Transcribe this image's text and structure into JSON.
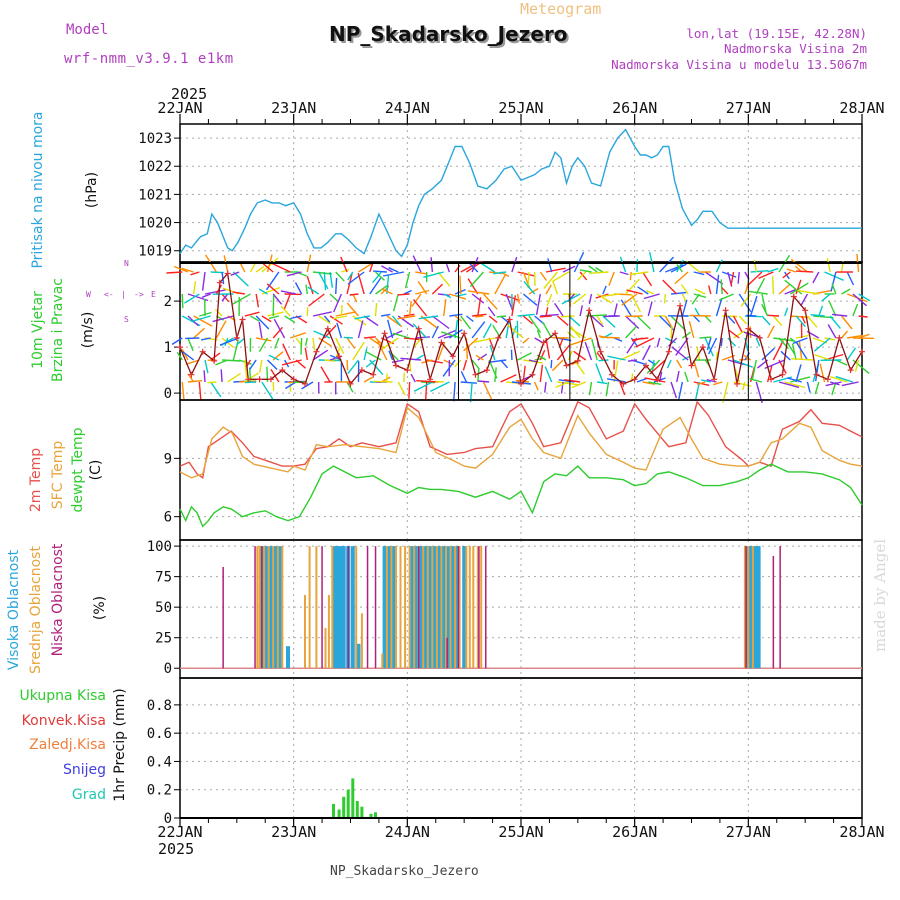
{
  "header": {
    "model_label": "Model",
    "model_name": "wrf-nmm_v3.9.1 e1km",
    "chart_kind": "Meteogram",
    "station": "NP_Skadarsko_Jezero",
    "lonlat": "lon,lat (19.15E, 42.28N)",
    "elevation": "Nadmorska Visina 2m",
    "model_elevation": "Nadmorska Visina u modelu 13.5067m"
  },
  "footer": {
    "station": "NP_Skadarsko_Jezero",
    "credit": "made by Angel"
  },
  "colors": {
    "pressure": "#2aa6dc",
    "temp2m": "#e8504a",
    "sfc_temp": "#e8a43c",
    "dewpt": "#2ecc2e",
    "wind_speed": "#8b1010",
    "wind_marker": "#e23030",
    "high_cloud": "#2aa6dc",
    "mid_cloud": "#e8a43c",
    "low_cloud": "#b0207a",
    "total_precip": "#2ecc2e",
    "conv_precip": "#e23a3a",
    "frozen_precip": "#f08040",
    "snow": "#4040e0",
    "hail": "#20c8b0",
    "legend_purple": "#b040c0",
    "grid": "#aaaaaa"
  },
  "chart_data": [
    {
      "type": "line",
      "panel": "pressure",
      "ylabel_lines": [
        "Pritisak na nivou mora",
        "(hPa)"
      ],
      "ylim": [
        1018.6,
        1023.5
      ],
      "yticks": [
        1019,
        1020,
        1021,
        1022,
        1023
      ],
      "x_days": [
        0,
        0.05,
        0.1,
        0.14,
        0.18,
        0.24,
        0.28,
        0.33,
        0.38,
        0.42,
        0.46,
        0.51,
        0.57,
        0.62,
        0.68,
        0.75,
        0.81,
        0.87,
        0.93,
        1.0,
        1.06,
        1.12,
        1.18,
        1.24,
        1.3,
        1.37,
        1.42,
        1.48,
        1.55,
        1.62,
        1.68,
        1.75,
        1.82,
        1.9,
        1.95,
        2.0,
        2.05,
        2.1,
        2.15,
        2.22,
        2.3,
        2.37,
        2.42,
        2.48,
        2.55,
        2.62,
        2.7,
        2.78,
        2.85,
        2.92,
        3.0,
        3.06,
        3.12,
        3.18,
        3.25,
        3.3,
        3.35,
        3.4,
        3.45,
        3.5,
        3.56,
        3.62,
        3.7,
        3.78,
        3.85,
        3.92,
        4.0,
        4.05,
        4.1,
        4.15,
        4.2,
        4.25,
        4.3,
        4.35,
        4.42,
        4.5,
        4.55,
        4.6,
        4.68,
        4.75,
        4.82,
        4.9,
        4.95,
        5.0,
        5.05,
        5.1,
        5.15,
        5.2,
        5.25,
        5.3,
        5.35,
        5.4,
        5.45,
        5.5,
        5.58,
        5.65,
        5.72,
        5.8,
        5.87,
        5.93,
        6.0
      ],
      "values": [
        1018.9,
        1019.2,
        1019.1,
        1019.3,
        1019.5,
        1019.6,
        1020.3,
        1020.0,
        1019.5,
        1019.1,
        1019.0,
        1019.3,
        1019.8,
        1020.3,
        1020.7,
        1020.8,
        1020.7,
        1020.7,
        1020.6,
        1020.7,
        1020.3,
        1019.6,
        1019.1,
        1019.1,
        1019.3,
        1019.6,
        1019.6,
        1019.4,
        1019.1,
        1018.9,
        1019.5,
        1020.3,
        1019.7,
        1019.0,
        1018.8,
        1019.2,
        1020.0,
        1020.6,
        1021.0,
        1021.2,
        1021.5,
        1022.2,
        1022.7,
        1022.7,
        1022.1,
        1021.3,
        1021.2,
        1021.5,
        1021.9,
        1022.0,
        1021.5,
        1021.6,
        1021.7,
        1021.9,
        1022.0,
        1022.5,
        1022.3,
        1021.4,
        1022.0,
        1022.3,
        1022.0,
        1021.4,
        1021.3,
        1022.5,
        1023.0,
        1023.3,
        1022.7,
        1022.4,
        1022.4,
        1022.3,
        1022.4,
        1022.7,
        1022.7,
        1021.5,
        1020.5,
        1019.9,
        1020.1,
        1020.4,
        1020.4,
        1020.0,
        1019.8,
        1019.8,
        1019.8,
        1019.8,
        1019.8,
        1019.8,
        1019.8,
        1019.8,
        1019.8,
        1019.8,
        1019.8,
        1019.8,
        1019.8,
        1019.8,
        1019.8,
        1019.8,
        1019.8,
        1019.8,
        1019.8,
        1019.8,
        1019.8
      ]
    },
    {
      "type": "line",
      "panel": "wind",
      "ylabel_lines": [
        "10m Vjetar",
        "Brzina i Pravac",
        "(m/s)"
      ],
      "compass_labels": [
        "N",
        "W",
        "<-",
        "|",
        "->",
        "E",
        "S"
      ],
      "ylim": [
        -0.15,
        2.85
      ],
      "yticks": [
        0,
        1,
        2
      ],
      "x_days": [
        0,
        0.1,
        0.2,
        0.3,
        0.35,
        0.42,
        0.5,
        0.55,
        0.6,
        0.7,
        0.8,
        0.9,
        1.0,
        1.1,
        1.2,
        1.3,
        1.4,
        1.5,
        1.6,
        1.7,
        1.8,
        1.9,
        2.0,
        2.1,
        2.2,
        2.3,
        2.4,
        2.5,
        2.6,
        2.7,
        2.8,
        2.9,
        3.0,
        3.1,
        3.2,
        3.3,
        3.4,
        3.5,
        3.6,
        3.7,
        3.8,
        3.9,
        4.0,
        4.1,
        4.2,
        4.3,
        4.4,
        4.5,
        4.6,
        4.7,
        4.8,
        4.9,
        5.0,
        5.1,
        5.2,
        5.3,
        5.4,
        5.5,
        5.6,
        5.7,
        5.8,
        5.9,
        6.0
      ],
      "values": [
        1.0,
        0.4,
        0.9,
        0.7,
        2.4,
        2.6,
        1.2,
        1.6,
        0.3,
        0.3,
        0.3,
        0.5,
        0.3,
        0.2,
        0.9,
        1.4,
        0.8,
        0.2,
        0.5,
        0.4,
        1.3,
        0.6,
        0.5,
        1.4,
        0.3,
        1.1,
        0.8,
        1.3,
        0.4,
        0.5,
        1.2,
        1.6,
        0.2,
        0.4,
        1.1,
        1.3,
        0.6,
        0.7,
        1.8,
        0.9,
        0.4,
        0.2,
        0.3,
        0.6,
        0.3,
        0.9,
        1.9,
        0.6,
        1.0,
        0.3,
        1.8,
        0.2,
        1.4,
        1.2,
        0.3,
        0.4,
        2.1,
        1.8,
        0.4,
        0.3,
        1.2,
        0.5,
        0.9
      ]
    },
    {
      "type": "line",
      "panel": "temperature",
      "ylabel_lines": [
        "2m Temp",
        "SFC Temp",
        "dewpt Temp",
        "(C)"
      ],
      "ylim": [
        4.8,
        12.0
      ],
      "yticks": [
        6,
        9
      ],
      "series": [
        {
          "name": "2m Temp",
          "x_days": [
            0,
            0.08,
            0.15,
            0.2,
            0.25,
            0.35,
            0.45,
            0.55,
            0.65,
            0.8,
            0.9,
            1.0,
            1.1,
            1.2,
            1.3,
            1.4,
            1.5,
            1.6,
            1.75,
            1.9,
            2.0,
            2.1,
            2.2,
            2.35,
            2.5,
            2.6,
            2.75,
            2.9,
            3.0,
            3.1,
            3.2,
            3.35,
            3.5,
            3.6,
            3.75,
            3.9,
            4.0,
            4.1,
            4.3,
            4.45,
            4.55,
            4.65,
            4.8,
            4.95,
            5.0,
            5.1,
            5.2,
            5.3,
            5.45,
            5.55,
            5.65,
            5.8,
            5.9,
            6.0
          ],
          "values": [
            8.6,
            8.8,
            8.2,
            8.0,
            9.6,
            10.0,
            10.4,
            9.8,
            9.1,
            8.8,
            8.6,
            8.6,
            8.7,
            9.5,
            9.6,
            10.0,
            9.6,
            9.8,
            9.6,
            9.8,
            11.8,
            11.4,
            9.6,
            9.2,
            9.3,
            9.5,
            9.6,
            11.4,
            11.8,
            10.8,
            9.6,
            9.8,
            11.9,
            11.6,
            10.0,
            10.4,
            11.8,
            11.0,
            9.6,
            9.8,
            11.9,
            11.2,
            9.6,
            8.9,
            8.6,
            8.8,
            8.6,
            10.5,
            10.9,
            11.5,
            10.8,
            10.7,
            10.4,
            10.1
          ]
        },
        {
          "name": "SFC Temp",
          "x_days": [
            0,
            0.1,
            0.2,
            0.28,
            0.38,
            0.46,
            0.55,
            0.65,
            0.8,
            0.95,
            1.0,
            1.1,
            1.2,
            1.3,
            1.45,
            1.6,
            1.75,
            1.9,
            2.0,
            2.1,
            2.25,
            2.4,
            2.5,
            2.6,
            2.75,
            2.9,
            3.0,
            3.1,
            3.2,
            3.35,
            3.5,
            3.6,
            3.75,
            3.9,
            4.0,
            4.1,
            4.25,
            4.4,
            4.5,
            4.6,
            4.75,
            4.9,
            5.0,
            5.1,
            5.2,
            5.3,
            5.45,
            5.55,
            5.65,
            5.8,
            5.9,
            6.0
          ],
          "values": [
            8.3,
            8.0,
            8.2,
            10.0,
            10.6,
            10.3,
            9.1,
            8.7,
            8.5,
            8.3,
            8.6,
            8.4,
            9.7,
            9.6,
            9.7,
            9.6,
            9.5,
            9.3,
            11.6,
            11.1,
            9.3,
            8.9,
            8.6,
            8.5,
            9.2,
            10.6,
            11.0,
            10.0,
            9.3,
            9.0,
            11.2,
            10.3,
            9.2,
            8.8,
            8.5,
            8.4,
            10.5,
            11.1,
            10.0,
            9.0,
            8.7,
            8.6,
            8.6,
            8.8,
            9.8,
            10.0,
            10.8,
            10.6,
            9.4,
            8.9,
            8.7,
            8.6
          ]
        },
        {
          "name": "dewpt Temp",
          "x_days": [
            0,
            0.05,
            0.1,
            0.15,
            0.2,
            0.25,
            0.3,
            0.38,
            0.45,
            0.55,
            0.65,
            0.75,
            0.85,
            0.95,
            1.05,
            1.15,
            1.25,
            1.35,
            1.45,
            1.55,
            1.7,
            1.85,
            2.0,
            2.1,
            2.2,
            2.3,
            2.45,
            2.6,
            2.75,
            2.9,
            3.0,
            3.1,
            3.2,
            3.3,
            3.4,
            3.5,
            3.6,
            3.75,
            3.9,
            4.0,
            4.1,
            4.2,
            4.3,
            4.45,
            4.6,
            4.75,
            4.9,
            5.0,
            5.1,
            5.2,
            5.35,
            5.5,
            5.65,
            5.8,
            5.9,
            6.0
          ],
          "values": [
            6.4,
            5.8,
            6.5,
            6.2,
            5.5,
            5.8,
            6.2,
            6.5,
            6.4,
            6.0,
            6.2,
            6.3,
            6.0,
            5.8,
            6.0,
            7.0,
            8.2,
            8.6,
            8.3,
            8.0,
            8.1,
            7.6,
            7.2,
            7.5,
            7.4,
            7.4,
            7.3,
            7.0,
            7.3,
            6.9,
            7.3,
            6.2,
            7.8,
            8.2,
            8.1,
            8.6,
            8.0,
            8.0,
            7.9,
            7.6,
            7.7,
            8.2,
            8.3,
            8.0,
            7.6,
            7.6,
            7.8,
            8.0,
            8.4,
            8.7,
            8.3,
            8.3,
            8.2,
            7.9,
            7.5,
            6.6
          ]
        }
      ]
    },
    {
      "type": "bar",
      "panel": "clouds",
      "ylabel_lines": [
        "Visoka Oblacnost",
        "Srednja Oblacnost",
        "Niska Oblacnost",
        "(%)"
      ],
      "ylim": [
        -8,
        105
      ],
      "yticks": [
        0,
        25,
        50,
        75,
        100
      ],
      "series": [
        {
          "name": "Visoka Oblacnost",
          "x_days": [
            0.72,
            0.76,
            0.8,
            0.84,
            0.88,
            0.95,
            1.35,
            1.38,
            1.41,
            1.44,
            1.48,
            1.52,
            1.57,
            1.8,
            1.84,
            1.88,
            2.04,
            2.08,
            2.12,
            2.16,
            2.2,
            2.24,
            2.28,
            2.32,
            2.36,
            2.4,
            2.44,
            2.5,
            5.0,
            5.03,
            5.06,
            5.09
          ],
          "values": [
            100,
            100,
            100,
            100,
            100,
            18,
            100,
            100,
            100,
            100,
            100,
            100,
            20,
            100,
            100,
            100,
            100,
            100,
            100,
            100,
            100,
            100,
            100,
            100,
            100,
            100,
            100,
            100,
            100,
            100,
            100,
            100
          ]
        },
        {
          "name": "Srednja Oblacnost",
          "x_days": [
            0.68,
            0.7,
            0.74,
            0.78,
            0.82,
            0.86,
            0.9,
            1.1,
            1.14,
            1.2,
            1.28,
            1.31,
            1.34,
            1.55,
            1.6,
            1.78,
            1.82,
            1.86,
            1.9,
            1.94,
            1.98,
            2.02,
            2.06,
            2.1,
            2.14,
            2.18,
            2.22,
            2.26,
            2.3,
            2.34,
            2.38,
            2.42,
            2.46,
            2.52,
            2.55,
            2.58,
            2.62,
            2.65,
            4.97,
            5.0,
            5.04
          ],
          "values": [
            100,
            100,
            100,
            100,
            100,
            100,
            100,
            60,
            100,
            100,
            33,
            60,
            100,
            100,
            45,
            12,
            100,
            100,
            100,
            100,
            100,
            100,
            100,
            100,
            100,
            100,
            100,
            100,
            100,
            100,
            100,
            100,
            100,
            100,
            100,
            100,
            100,
            100,
            100,
            100,
            100
          ]
        },
        {
          "name": "Niska Oblacnost",
          "x_days": [
            0.38,
            0.66,
            0.72,
            1.25,
            1.48,
            1.65,
            1.72,
            2.1,
            2.35,
            2.45,
            2.63,
            2.69,
            4.98,
            5.22,
            5.28
          ],
          "values": [
            83,
            100,
            100,
            100,
            100,
            100,
            100,
            100,
            25,
            100,
            100,
            100,
            100,
            92,
            100
          ]
        }
      ]
    },
    {
      "type": "bar",
      "panel": "precipitation",
      "ylabel_lines": [
        "1hr Precip (mm)"
      ],
      "legend_words": [
        "Ukupna Kisa",
        "Konvek.Kisa",
        "Zaledj.Kisa",
        "Snijeg",
        "Grad"
      ],
      "ylim": [
        0,
        0.99
      ],
      "yticks": [
        0,
        0.2,
        0.4,
        0.6,
        0.8
      ],
      "series": [
        {
          "name": "Ukupna Kisa",
          "x_days": [
            1.35,
            1.4,
            1.44,
            1.48,
            1.52,
            1.56,
            1.6,
            1.68,
            1.72
          ],
          "values": [
            0.1,
            0.06,
            0.15,
            0.2,
            0.28,
            0.12,
            0.08,
            0.03,
            0.04
          ]
        }
      ]
    }
  ],
  "time_axis": {
    "year": "2025",
    "ticks": [
      "22JAN",
      "23JAN",
      "24JAN",
      "25JAN",
      "26JAN",
      "27JAN",
      "28JAN"
    ]
  }
}
